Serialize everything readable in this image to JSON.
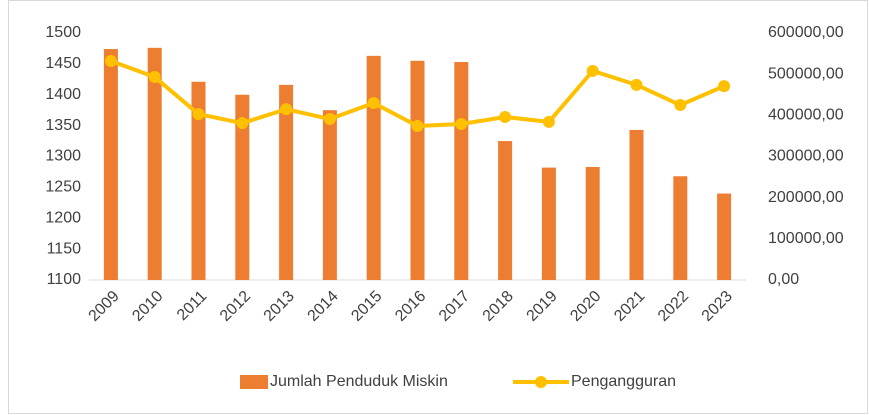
{
  "chart_data": {
    "type": "bar-line",
    "categories": [
      "2009",
      "2010",
      "2011",
      "2012",
      "2013",
      "2014",
      "2015",
      "2016",
      "2017",
      "2018",
      "2019",
      "2020",
      "2021",
      "2022",
      "2023"
    ],
    "series": [
      {
        "name": "Jumlah Penduduk Miskin",
        "color": "#ED7D31",
        "type": "bar",
        "values": [
          1474,
          1476,
          1421,
          1400,
          1416,
          1375,
          1463,
          1455,
          1453,
          1325,
          1282,
          1283,
          1343,
          1268,
          1240
        ]
      },
      {
        "name": "Pengangguran",
        "color": "#FFC000",
        "type": "line",
        "axis": "y2",
        "values": [
          532000,
          493000,
          403000,
          381000,
          415000,
          391000,
          430000,
          374000,
          379000,
          396000,
          384000,
          508000,
          474000,
          425000,
          471000
        ]
      }
    ],
    "ylim": [
      1100,
      1500
    ],
    "yticks": [
      1100,
      1150,
      1200,
      1250,
      1300,
      1350,
      1400,
      1450,
      1500
    ],
    "y2lim": [
      0,
      600000
    ],
    "y2ticks": [
      {
        "value": 0,
        "label": "0,00"
      },
      {
        "value": 100000,
        "label": "100000,00"
      },
      {
        "value": 200000,
        "label": "200000,00"
      },
      {
        "value": 300000,
        "label": "300000,00"
      },
      {
        "value": 400000,
        "label": "400000,00"
      },
      {
        "value": 500000,
        "label": "500000,00"
      },
      {
        "value": 600000,
        "label": "600000,00"
      }
    ],
    "legend": "bottom"
  }
}
